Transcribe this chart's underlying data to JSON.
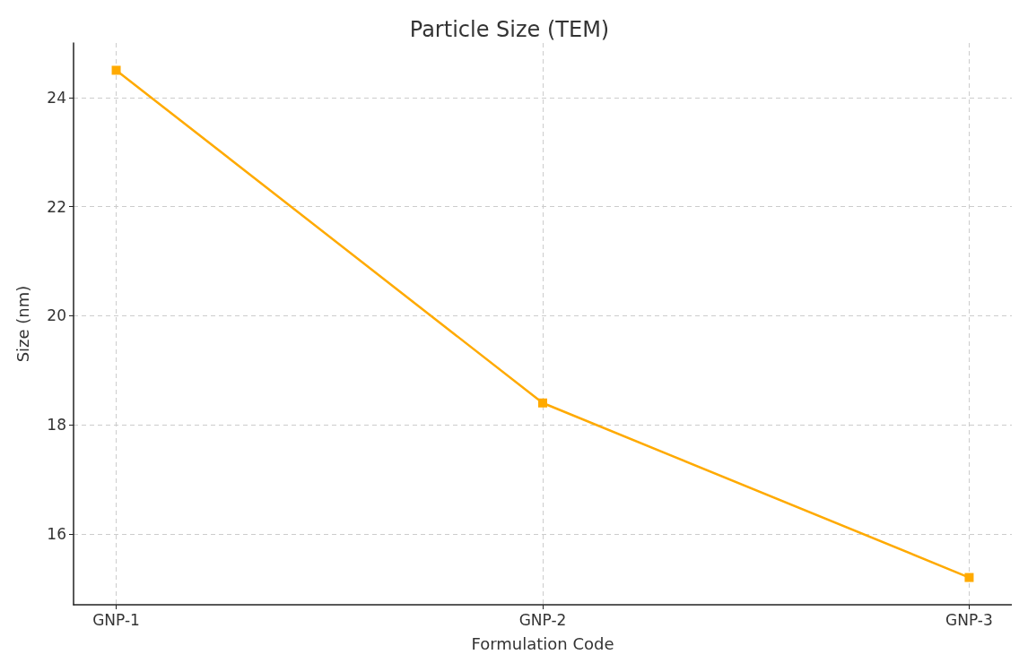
{
  "chart_data": {
    "type": "line",
    "title": "Particle Size (TEM)",
    "xlabel": "Formulation Code",
    "ylabel": "Size (nm)",
    "categories": [
      "GNP-1",
      "GNP-2",
      "GNP-3"
    ],
    "series": [
      {
        "color": "#ffaa00",
        "values": [
          24.5,
          18.4,
          15.2
        ]
      }
    ],
    "ylim": [
      14.7,
      25.0
    ],
    "yticks": [
      16,
      18,
      20,
      22,
      24
    ],
    "grid": true,
    "marker": "square",
    "line_style": "solid"
  }
}
